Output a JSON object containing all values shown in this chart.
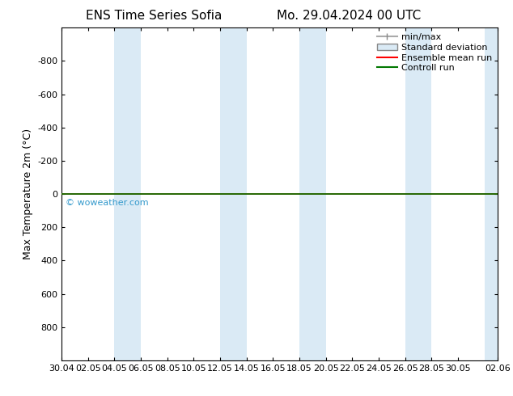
{
  "title_left": "ENS Time Series Sofia",
  "title_right": "Mo. 29.04.2024 00 UTC",
  "ylabel": "Max Temperature 2m (°C)",
  "xlim_start": 0,
  "xlim_end": 33,
  "ylim_top": -1000,
  "ylim_bottom": 1000,
  "yticks": [
    -800,
    -600,
    -400,
    -200,
    0,
    200,
    400,
    600,
    800
  ],
  "xtick_labels": [
    "30.04",
    "02.05",
    "04.05",
    "06.05",
    "08.05",
    "10.05",
    "12.05",
    "14.05",
    "16.05",
    "18.05",
    "20.05",
    "22.05",
    "24.05",
    "26.05",
    "28.05",
    "30.05",
    "02.06"
  ],
  "xtick_positions": [
    0,
    2,
    4,
    6,
    8,
    10,
    12,
    14,
    16,
    18,
    20,
    22,
    24,
    26,
    28,
    30,
    33
  ],
  "shaded_bands": [
    [
      4,
      6
    ],
    [
      12,
      14
    ],
    [
      18,
      20
    ],
    [
      26,
      28
    ],
    [
      32,
      33
    ]
  ],
  "shaded_color": "#daeaf5",
  "control_run_y": 0.0,
  "ensemble_mean_y": 0.0,
  "background_color": "#ffffff",
  "plot_bg_color": "#ffffff",
  "watermark": "© woweather.com",
  "watermark_color": "#3399cc",
  "legend_entries": [
    "min/max",
    "Standard deviation",
    "Ensemble mean run",
    "Controll run"
  ],
  "ensemble_mean_color": "#ff0000",
  "control_run_color": "#007700",
  "border_color": "#000080",
  "tick_color": "#000000",
  "font_size_title": 11,
  "font_size_axis": 8,
  "font_size_ylabel": 9,
  "font_size_legend": 8,
  "font_size_watermark": 8
}
